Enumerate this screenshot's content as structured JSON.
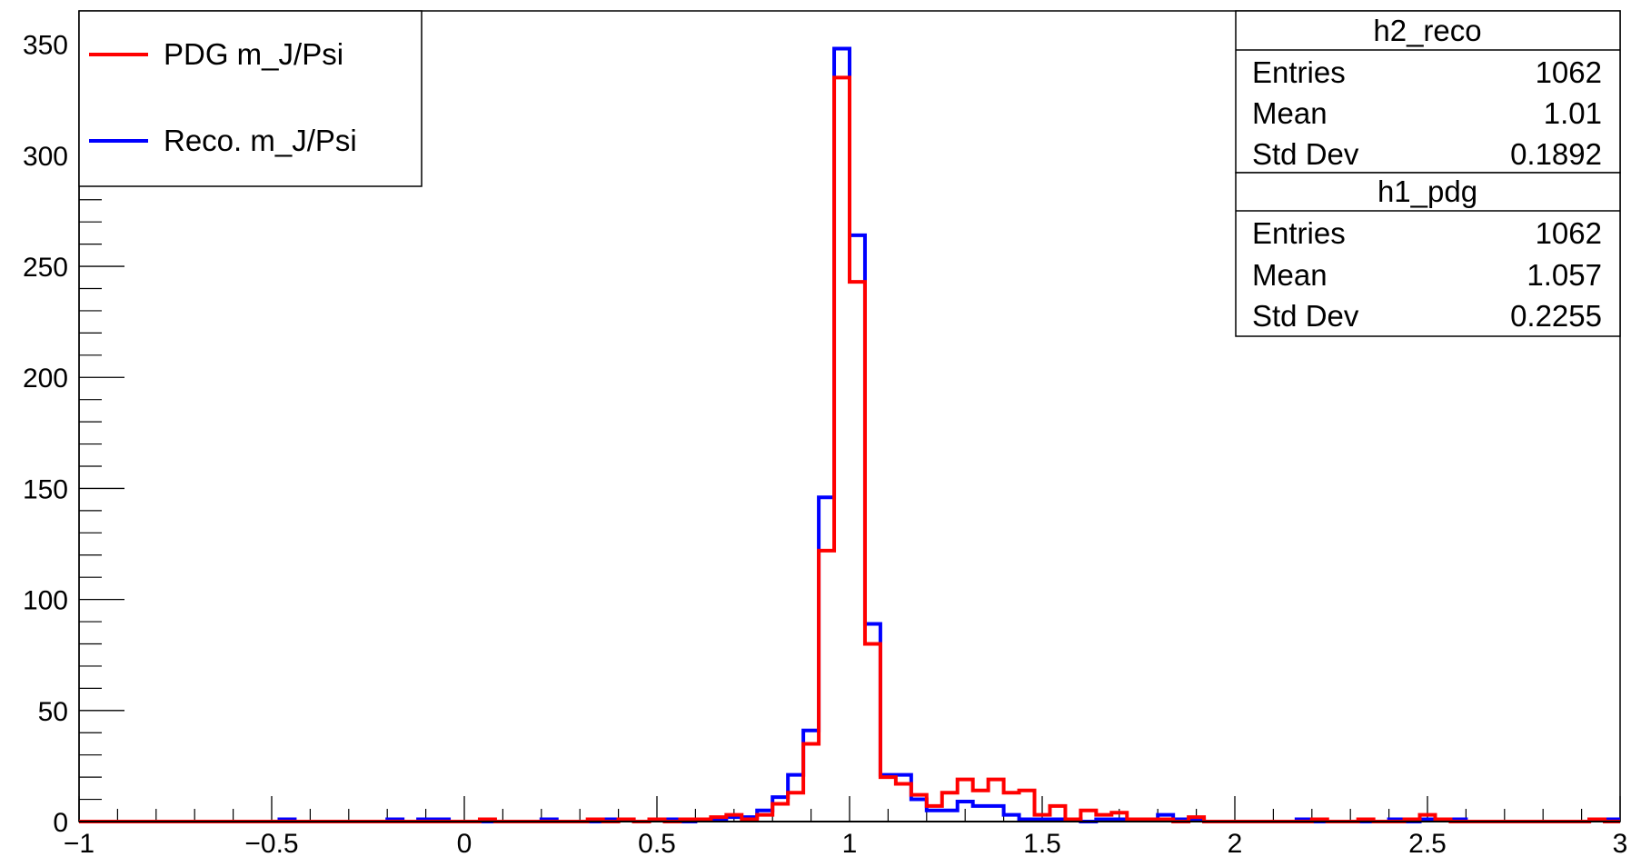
{
  "chart_data": {
    "type": "histogram",
    "xlim": [
      -1,
      3
    ],
    "ylim": [
      0,
      365
    ],
    "bin_width": 0.04,
    "x_ticks": [
      {
        "value": -1,
        "label": "−1"
      },
      {
        "value": -0.5,
        "label": "−0.5"
      },
      {
        "value": 0,
        "label": "0"
      },
      {
        "value": 0.5,
        "label": "0.5"
      },
      {
        "value": 1,
        "label": "1"
      },
      {
        "value": 1.5,
        "label": "1.5"
      },
      {
        "value": 2,
        "label": "2"
      },
      {
        "value": 2.5,
        "label": "2.5"
      },
      {
        "value": 3,
        "label": "3"
      }
    ],
    "y_ticks": [
      {
        "value": 0,
        "label": "0"
      },
      {
        "value": 50,
        "label": "50"
      },
      {
        "value": 100,
        "label": "100"
      },
      {
        "value": 150,
        "label": "150"
      },
      {
        "value": 200,
        "label": "200"
      },
      {
        "value": 250,
        "label": "250"
      },
      {
        "value": 300,
        "label": "300"
      },
      {
        "value": 350,
        "label": "350"
      }
    ],
    "series": [
      {
        "name": "Reco. m_J/Psi",
        "color": "#0000ff",
        "bins": [
          [
            -0.48,
            1
          ],
          [
            -0.2,
            1
          ],
          [
            -0.12,
            1
          ],
          [
            -0.08,
            1
          ],
          [
            0.2,
            1
          ],
          [
            0.36,
            1
          ],
          [
            0.4,
            1
          ],
          [
            0.48,
            1
          ],
          [
            0.52,
            1
          ],
          [
            0.6,
            1
          ],
          [
            0.64,
            1
          ],
          [
            0.68,
            2
          ],
          [
            0.72,
            2
          ],
          [
            0.76,
            5
          ],
          [
            0.8,
            11
          ],
          [
            0.84,
            21
          ],
          [
            0.88,
            41
          ],
          [
            0.92,
            146
          ],
          [
            0.96,
            348
          ],
          [
            1.0,
            264
          ],
          [
            1.04,
            89
          ],
          [
            1.08,
            21
          ],
          [
            1.12,
            21
          ],
          [
            1.16,
            10
          ],
          [
            1.2,
            5
          ],
          [
            1.24,
            5
          ],
          [
            1.28,
            9
          ],
          [
            1.32,
            7
          ],
          [
            1.36,
            7
          ],
          [
            1.4,
            3
          ],
          [
            1.44,
            1
          ],
          [
            1.48,
            1
          ],
          [
            1.52,
            1
          ],
          [
            1.56,
            1
          ],
          [
            1.64,
            1
          ],
          [
            1.68,
            1
          ],
          [
            1.72,
            1
          ],
          [
            1.76,
            1
          ],
          [
            1.8,
            3
          ],
          [
            1.84,
            1
          ],
          [
            1.88,
            1
          ],
          [
            2.16,
            1
          ],
          [
            2.4,
            1
          ],
          [
            2.48,
            1
          ],
          [
            2.52,
            1
          ],
          [
            2.56,
            1
          ],
          [
            2.92,
            1
          ],
          [
            2.96,
            1
          ]
        ]
      },
      {
        "name": "PDG m_J/Psi",
        "color": "#ff0000",
        "bins": [
          [
            0.04,
            1
          ],
          [
            0.32,
            1
          ],
          [
            0.4,
            1
          ],
          [
            0.48,
            1
          ],
          [
            0.56,
            1
          ],
          [
            0.6,
            1
          ],
          [
            0.64,
            2
          ],
          [
            0.68,
            3
          ],
          [
            0.72,
            1
          ],
          [
            0.76,
            3
          ],
          [
            0.8,
            8
          ],
          [
            0.84,
            13
          ],
          [
            0.88,
            35
          ],
          [
            0.92,
            122
          ],
          [
            0.96,
            335
          ],
          [
            1.0,
            243
          ],
          [
            1.04,
            80
          ],
          [
            1.08,
            20
          ],
          [
            1.12,
            17
          ],
          [
            1.16,
            12
          ],
          [
            1.2,
            7
          ],
          [
            1.24,
            13
          ],
          [
            1.28,
            19
          ],
          [
            1.32,
            14
          ],
          [
            1.36,
            19
          ],
          [
            1.4,
            13
          ],
          [
            1.44,
            14
          ],
          [
            1.48,
            3
          ],
          [
            1.52,
            7
          ],
          [
            1.56,
            1
          ],
          [
            1.6,
            5
          ],
          [
            1.64,
            3
          ],
          [
            1.68,
            4
          ],
          [
            1.72,
            1
          ],
          [
            1.76,
            1
          ],
          [
            1.8,
            1
          ],
          [
            1.88,
            2
          ],
          [
            2.2,
            1
          ],
          [
            2.32,
            1
          ],
          [
            2.44,
            1
          ],
          [
            2.48,
            3
          ],
          [
            2.52,
            1
          ],
          [
            2.92,
            1
          ]
        ]
      }
    ],
    "legend": {
      "position": "top-left",
      "entries": [
        {
          "label": "PDG m_J/Psi",
          "color": "#ff0000"
        },
        {
          "label": "Reco. m_J/Psi",
          "color": "#0000ff"
        }
      ]
    },
    "stat_boxes": [
      {
        "name": "h2_reco",
        "rows": [
          {
            "label": "Entries",
            "value": "1062"
          },
          {
            "label": "Mean",
            "value": "1.01"
          },
          {
            "label": "Std Dev",
            "value": "0.1892"
          }
        ]
      },
      {
        "name": "h1_pdg",
        "rows": [
          {
            "label": "Entries",
            "value": "1062"
          },
          {
            "label": "Mean",
            "value": "1.057"
          },
          {
            "label": "Std Dev",
            "value": "0.2255"
          }
        ]
      }
    ]
  }
}
